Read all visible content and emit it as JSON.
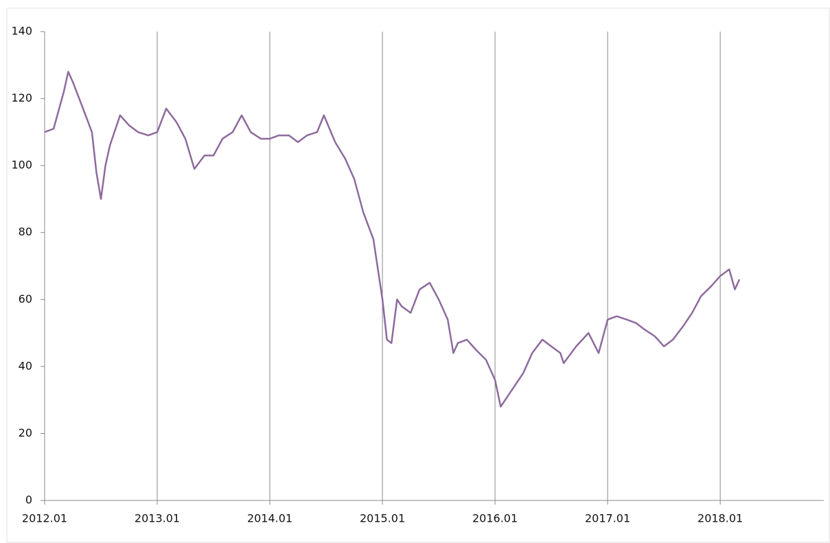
{
  "chart_data": {
    "type": "line",
    "x": [
      2012.0,
      2012.08,
      2012.17,
      2012.21,
      2012.25,
      2012.33,
      2012.42,
      2012.46,
      2012.5,
      2012.54,
      2012.58,
      2012.67,
      2012.75,
      2012.83,
      2012.92,
      2013.0,
      2013.08,
      2013.17,
      2013.25,
      2013.33,
      2013.42,
      2013.5,
      2013.58,
      2013.67,
      2013.75,
      2013.83,
      2013.92,
      2014.0,
      2014.08,
      2014.17,
      2014.25,
      2014.33,
      2014.42,
      2014.48,
      2014.58,
      2014.67,
      2014.75,
      2014.83,
      2014.92,
      2015.0,
      2015.04,
      2015.08,
      2015.13,
      2015.17,
      2015.25,
      2015.33,
      2015.42,
      2015.5,
      2015.58,
      2015.63,
      2015.67,
      2015.75,
      2015.83,
      2015.92,
      2016.0,
      2016.05,
      2016.17,
      2016.25,
      2016.33,
      2016.42,
      2016.5,
      2016.58,
      2016.61,
      2016.72,
      2016.83,
      2016.92,
      2017.0,
      2017.08,
      2017.17,
      2017.25,
      2017.33,
      2017.42,
      2017.5,
      2017.58,
      2017.67,
      2017.75,
      2017.83,
      2017.92,
      2018.0,
      2018.08,
      2018.13,
      2018.17
    ],
    "values": [
      110,
      111,
      122,
      128,
      125,
      118,
      110,
      98,
      90,
      100,
      106,
      115,
      112,
      110,
      109,
      110,
      117,
      113,
      108,
      99,
      103,
      103,
      108,
      110,
      115,
      110,
      108,
      108,
      109,
      109,
      107,
      109,
      110,
      115,
      107,
      102,
      96,
      86,
      78,
      60,
      48,
      47,
      60,
      58,
      56,
      63,
      65,
      60,
      54,
      44,
      47,
      48,
      45,
      42,
      36,
      28,
      34,
      38,
      44,
      48,
      46,
      44,
      41,
      46,
      50,
      44,
      54,
      55,
      54,
      53,
      51,
      49,
      46,
      48,
      52,
      56,
      61,
      64,
      67,
      69,
      63,
      66
    ],
    "color": "#8d6a9d",
    "xlim": [
      2012,
      2018.92
    ],
    "xticks": [
      {
        "value": 2012,
        "label": "2012.01"
      },
      {
        "value": 2013,
        "label": "2013.01"
      },
      {
        "value": 2014,
        "label": "2014.01"
      },
      {
        "value": 2015,
        "label": "2015.01"
      },
      {
        "value": 2016,
        "label": "2016.01"
      },
      {
        "value": 2017,
        "label": "2017.01"
      },
      {
        "value": 2018,
        "label": "2018.01"
      }
    ],
    "ylim": [
      0,
      140
    ],
    "yticks": [
      0,
      20,
      40,
      60,
      80,
      100,
      120,
      140
    ],
    "grid": true
  }
}
